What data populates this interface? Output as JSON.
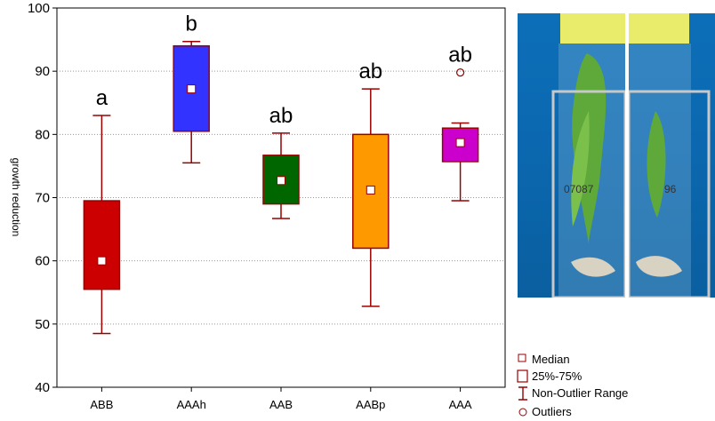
{
  "chart_data": {
    "type": "box",
    "title": "",
    "xlabel": "",
    "ylabel": "growth reduction",
    "ylim": [
      40,
      100
    ],
    "yticks": [
      40,
      50,
      60,
      70,
      80,
      90,
      100
    ],
    "grid": "horizontal dotted",
    "categories": [
      "ABB",
      "AAAh",
      "AAB",
      "AABp",
      "AAA"
    ],
    "series": [
      {
        "name": "ABB",
        "median": 60.0,
        "q1": 55.5,
        "q3": 69.5,
        "min": 48.5,
        "max": 83.0,
        "outliers": [],
        "letter": "a",
        "color": "#cc0000"
      },
      {
        "name": "AAAh",
        "median": 87.2,
        "q1": 80.5,
        "q3": 94.0,
        "min": 75.5,
        "max": 94.7,
        "outliers": [],
        "letter": "b",
        "color": "#3333ff"
      },
      {
        "name": "AAB",
        "median": 72.7,
        "q1": 69.0,
        "q3": 76.7,
        "min": 66.7,
        "max": 80.2,
        "outliers": [],
        "letter": "ab",
        "color": "#006600"
      },
      {
        "name": "AABp",
        "median": 71.2,
        "q1": 62.0,
        "q3": 80.0,
        "min": 52.8,
        "max": 87.2,
        "outliers": [],
        "letter": "ab",
        "color": "#ff9900"
      },
      {
        "name": "AAA",
        "median": 78.7,
        "q1": 75.7,
        "q3": 81.0,
        "min": 69.5,
        "max": 81.8,
        "outliers": [
          89.8
        ],
        "letter": "ab",
        "color": "#cc00cc"
      }
    ],
    "whisker_color": "#990000",
    "legend": {
      "placement": "bottom-right",
      "entries": [
        "Median",
        "25%-75%",
        "Non-Outlier Range",
        "Outliers"
      ]
    }
  },
  "photo": {
    "left_tube_text": "07087",
    "right_tube_text": "96"
  }
}
